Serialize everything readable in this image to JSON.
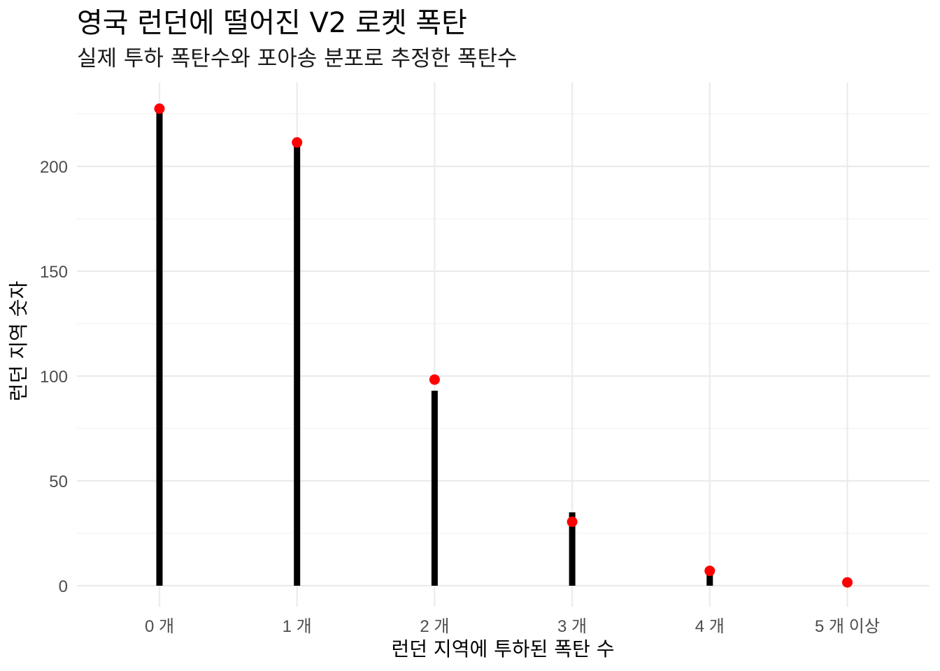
{
  "chart_data": {
    "type": "bar",
    "title": "영국 런던에 떨어진 V2 로켓 폭탄",
    "subtitle": "실제 투하 폭탄수와 포아송 분포로 추정한 폭탄수",
    "xlabel": "런던 지역에 투하된 폭탄 수",
    "ylabel": "런던 지역 숫자",
    "categories": [
      "0 개",
      "1 개",
      "2 개",
      "3 개",
      "4 개",
      "5 개 이상"
    ],
    "series": [
      {
        "values": [
          229,
          211,
          93,
          35,
          7,
          1
        ],
        "color": "#000000",
        "mark": "bar"
      },
      {
        "values": [
          227.5,
          211.4,
          98.3,
          30.5,
          7.1,
          1.6
        ],
        "color": "#ff0000",
        "mark": "point"
      }
    ],
    "ylim": [
      -9,
      235
    ],
    "yticks": [
      0,
      50,
      100,
      150,
      200
    ],
    "grid": true,
    "legend": "none"
  }
}
